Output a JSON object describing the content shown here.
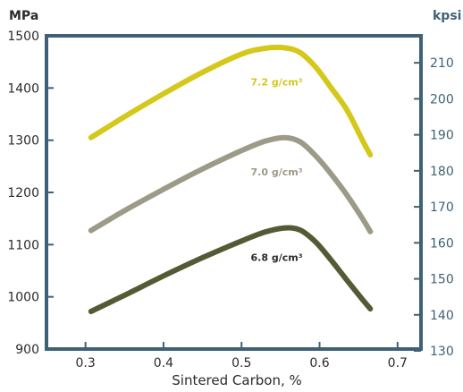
{
  "chart_data": {
    "type": "line",
    "title": "",
    "xlabel": "Sintered Carbon, %",
    "ylabel_left": "MPa",
    "ylabel_right": "kpsi",
    "x_ticks": [
      "0.3",
      "0.4",
      "0.5",
      "0.6",
      "0.7"
    ],
    "y_ticks_left": [
      "900",
      "1000",
      "1100",
      "1200",
      "1300",
      "1400",
      "1500"
    ],
    "y_ticks_right": [
      "130",
      "140",
      "150",
      "160",
      "170",
      "180",
      "190",
      "200",
      "210"
    ],
    "xlim": [
      0.25,
      0.73
    ],
    "ylim_left": [
      900,
      1500
    ],
    "ylim_right": [
      130.5,
      217.5
    ],
    "grid": false,
    "colors": {
      "frame": "#3f6177",
      "right_axis": "#3f6177"
    },
    "series": [
      {
        "name": "7.2 g/cm³",
        "color": "#d4c81a",
        "x": [
          0.307,
          0.35,
          0.4,
          0.45,
          0.5,
          0.53,
          0.555,
          0.575,
          0.595,
          0.615,
          0.635,
          0.655,
          0.665
        ],
        "y": [
          1305,
          1345,
          1389,
          1430,
          1465,
          1476,
          1477,
          1468,
          1440,
          1400,
          1358,
          1300,
          1272
        ]
      },
      {
        "name": "7.0 g/cm³",
        "color": "#9e9a88",
        "x": [
          0.307,
          0.35,
          0.4,
          0.45,
          0.5,
          0.53,
          0.555,
          0.575,
          0.595,
          0.615,
          0.635,
          0.655,
          0.665
        ],
        "y": [
          1127,
          1165,
          1206,
          1245,
          1280,
          1298,
          1305,
          1297,
          1270,
          1235,
          1195,
          1150,
          1125
        ]
      },
      {
        "name": "6.8 g/cm³",
        "color": "#555a35",
        "x": [
          0.307,
          0.35,
          0.4,
          0.45,
          0.5,
          0.53,
          0.555,
          0.575,
          0.595,
          0.615,
          0.635,
          0.655,
          0.665
        ],
        "y": [
          972,
          1003,
          1040,
          1075,
          1107,
          1124,
          1132,
          1128,
          1105,
          1070,
          1032,
          995,
          977
        ]
      }
    ]
  }
}
